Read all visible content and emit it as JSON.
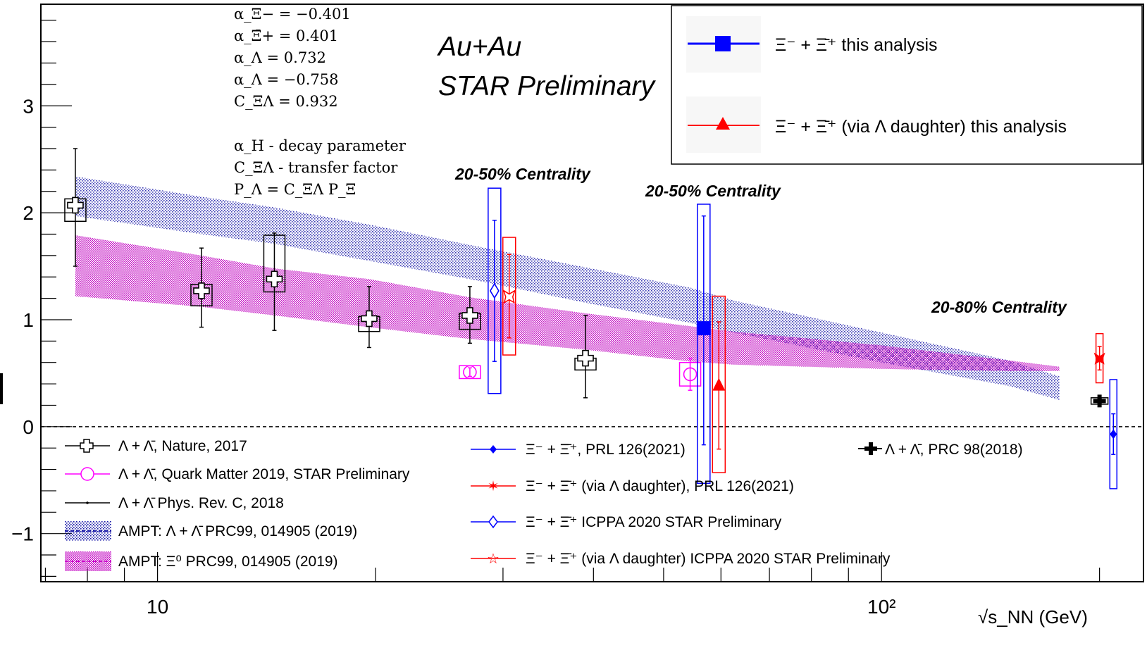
{
  "chart_data": {
    "type": "scatter",
    "title": "",
    "xlabel": "√s_NN (GeV)",
    "ylabel": "",
    "x_scale": "log",
    "xlim": [
      6.9,
      230
    ],
    "ylim": [
      -1.45,
      3.95
    ],
    "y_tick_labels": [
      "−1",
      "0",
      "1",
      "2",
      "3"
    ],
    "x_tick_labels": [
      "10",
      "10²"
    ],
    "grid": false,
    "zero_line": "dashed",
    "experiment_label": [
      "Au+Au",
      "STAR Preliminary"
    ],
    "parameters": [
      "α_Ξ− = −0.401",
      "α_Ξ̄+ = 0.401",
      "α_Λ = 0.732",
      "α_Λ = −0.758",
      "C_ΞΛ = 0.932",
      "α_H - decay parameter",
      "C_ΞΛ - transfer factor",
      "P_Λ = C_ΞΛ P_Ξ"
    ],
    "centrality_labels": [
      {
        "text": "20-50% Centrality",
        "x": 27.0
      },
      {
        "text": "20-50% Centrality",
        "x": 54.4
      },
      {
        "text": "20-80% Centrality",
        "x": 200
      }
    ],
    "legend_top_right": [
      {
        "label": "Ξ⁻ + Ξ̄⁺ this analysis",
        "color": "#0000ff",
        "marker": "square"
      },
      {
        "label": "Ξ⁻ + Ξ̄⁺ (via Λ daughter) this analysis",
        "color": "#ff0000",
        "marker": "triangle"
      }
    ],
    "legend_bottom": [
      {
        "label": "Λ + Λ̄, Nature, 2017",
        "color": "#000000",
        "marker": "open-cross"
      },
      {
        "label": "Λ + Λ̄, Quark Matter 2019, STAR Preliminary",
        "color": "#ff00ff",
        "marker": "open-circle"
      },
      {
        "label": "Λ + Λ̄ Phys. Rev. C, 2018",
        "color": "#000000",
        "marker": "dot"
      },
      {
        "label": "AMPT:  Λ + Λ̄ PRC99, 014905 (2019)",
        "color": "#1a1aa8",
        "marker": "band-blue"
      },
      {
        "label": "AMPT:  Ξ⁰ PRC99, 014905 (2019)",
        "color": "#cc00cc",
        "marker": "band-magenta"
      },
      {
        "label": "Ξ⁻ + Ξ̄⁺, PRL 126(2021)",
        "color": "#0000ff",
        "marker": "diamond"
      },
      {
        "label": "Ξ⁻ + Ξ̄⁺ (via Λ daughter), PRL 126(2021)",
        "color": "#ff0000",
        "marker": "star"
      },
      {
        "label": "Ξ⁻ + Ξ̄⁺ ICPPA 2020 STAR Preliminary",
        "color": "#0000ff",
        "marker": "open-diamond"
      },
      {
        "label": "Ξ⁻ + Ξ̄⁺ (via Λ daughter) ICPPA 2020 STAR Preliminary",
        "color": "#ff0000",
        "marker": "open-star"
      },
      {
        "label": "Λ + Λ̄, PRC 98(2018)",
        "color": "#000000",
        "marker": "filled-cross"
      }
    ],
    "series": [
      {
        "name": "Λ + Λ̄, Nature, 2017",
        "color": "#000000",
        "marker": "open-cross",
        "points": [
          {
            "x": 7.7,
            "y": 2.07,
            "yerr_low": 0.57,
            "yerr_high": 0.53,
            "sys_low": 0.15,
            "sys_high": 0.06
          },
          {
            "x": 11.5,
            "y": 1.27,
            "yerr_low": 0.34,
            "yerr_high": 0.4,
            "sys_low": 0.14,
            "sys_high": 0.06
          },
          {
            "x": 14.5,
            "y": 1.38,
            "yerr_low": 0.48,
            "yerr_high": 0.43,
            "sys_low": 0.12,
            "sys_high": 0.41
          },
          {
            "x": 19.6,
            "y": 1.01,
            "yerr_low": 0.27,
            "yerr_high": 0.3,
            "sys_low": 0.12,
            "sys_high": 0.02
          },
          {
            "x": 27.0,
            "y": 1.04,
            "yerr_low": 0.26,
            "yerr_high": 0.27,
            "sys_low": 0.13,
            "sys_high": 0.02
          },
          {
            "x": 39.0,
            "y": 0.64,
            "yerr_low": 0.37,
            "yerr_high": 0.4,
            "sys_low": 0.11,
            "sys_high": 0.0
          }
        ]
      },
      {
        "name": "Λ + Λ̄, Quark Matter 2019, STAR Preliminary",
        "color": "#ff00ff",
        "marker": "open-circle",
        "points": [
          {
            "x": 27.0,
            "y": 0.51,
            "yerr_low": 0.04,
            "yerr_high": 0.04,
            "sys_low": 0.06,
            "sys_high": 0.06
          },
          {
            "x": 54.4,
            "y": 0.49,
            "yerr_low": 0.15,
            "yerr_high": 0.15,
            "sys_low": 0.11,
            "sys_high": 0.11
          }
        ]
      },
      {
        "name": "Ξ⁻ + Ξ̄⁺ ICPPA 2020 STAR Preliminary",
        "color": "#0000ff",
        "marker": "open-diamond",
        "points": [
          {
            "x": 29.2,
            "y": 1.27,
            "yerr_low": 0.66,
            "yerr_high": 0.66,
            "sys_low": 0.96,
            "sys_high": 0.96
          }
        ]
      },
      {
        "name": "Ξ⁻ + Ξ̄⁺ (via Λ daughter) ICPPA 2020 STAR Preliminary",
        "color": "#ff0000",
        "marker": "open-star",
        "points": [
          {
            "x": 30.6,
            "y": 1.22,
            "yerr_low": 0.39,
            "yerr_high": 0.39,
            "sys_low": 0.55,
            "sys_high": 0.55
          }
        ]
      },
      {
        "name": "Ξ⁻ + Ξ̄⁺ this analysis",
        "color": "#0000ff",
        "marker": "square",
        "points": [
          {
            "x": 56.8,
            "y": 0.92,
            "yerr_low": 1.09,
            "yerr_high": 1.05,
            "sys_low": 1.45,
            "sys_high": 1.16
          }
        ]
      },
      {
        "name": "Ξ⁻ + Ξ̄⁺ (via Λ daughter) this analysis",
        "color": "#ff0000",
        "marker": "triangle",
        "points": [
          {
            "x": 59.6,
            "y": 0.39,
            "yerr_low": 0.6,
            "yerr_high": 0.59,
            "sys_low": 0.82,
            "sys_high": 0.83
          }
        ]
      },
      {
        "name": "Λ + Λ̄, PRC 98(2018)",
        "color": "#000000",
        "marker": "filled-cross",
        "points": [
          {
            "x": 200,
            "y": 0.24,
            "yerr_low": 0.02,
            "yerr_high": 0.02,
            "sys_low": 0.03,
            "sys_high": 0.03
          }
        ]
      },
      {
        "name": "Ξ⁻ + Ξ̄⁺ (via Λ daughter), PRL 126(2021)",
        "color": "#ff0000",
        "marker": "star",
        "points": [
          {
            "x": 200,
            "y": 0.64,
            "yerr_low": 0.11,
            "yerr_high": 0.11,
            "sys_low": 0.23,
            "sys_high": 0.23
          }
        ]
      },
      {
        "name": "Ξ⁻ + Ξ̄⁺, PRL 126(2021)",
        "color": "#0000ff",
        "marker": "diamond",
        "points": [
          {
            "x": 209,
            "y": -0.07,
            "yerr_low": 0.19,
            "yerr_high": 0.19,
            "sys_low": 0.51,
            "sys_high": 0.51
          }
        ]
      }
    ],
    "bands": [
      {
        "name": "AMPT:  Λ + Λ̄ PRC99, 014905 (2019)",
        "color": "#1a1aa8",
        "pattern": "dots",
        "x": [
          7.7,
          11.5,
          14.5,
          19.6,
          27.0,
          39.0,
          54.4,
          62.4,
          100,
          150,
          176
        ],
        "y_low": [
          1.97,
          1.8,
          1.71,
          1.55,
          1.38,
          1.16,
          0.97,
          0.88,
          0.6,
          0.38,
          0.25
        ],
        "y_high": [
          2.34,
          2.15,
          2.05,
          1.89,
          1.7,
          1.49,
          1.3,
          1.18,
          0.88,
          0.62,
          0.47
        ]
      },
      {
        "name": "AMPT:  Ξ⁰ PRC99, 014905 (2019)",
        "color": "#cc00cc",
        "pattern": "dots",
        "x": [
          7.7,
          11.5,
          14.5,
          19.6,
          27.0,
          39.0,
          54.4,
          62.4,
          100,
          150,
          176
        ],
        "y_low": [
          1.22,
          1.12,
          1.04,
          0.93,
          0.82,
          0.72,
          0.61,
          0.58,
          0.54,
          0.52,
          0.52
        ],
        "y_high": [
          1.79,
          1.6,
          1.48,
          1.38,
          1.21,
          1.06,
          0.94,
          0.89,
          0.76,
          0.62,
          0.56
        ]
      }
    ]
  }
}
